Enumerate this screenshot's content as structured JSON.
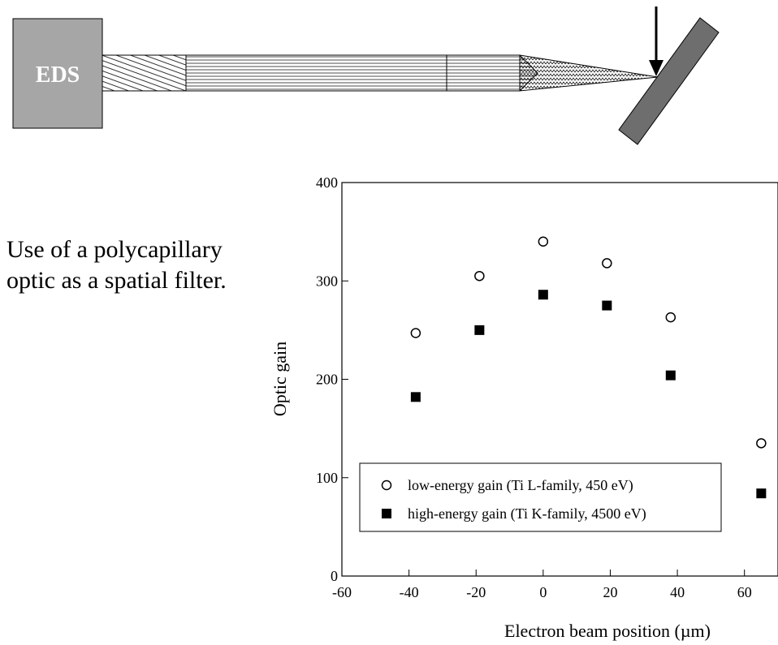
{
  "diagram": {
    "label": "EDS"
  },
  "caption": "Use of a polycapillary optic as a spatial filter.",
  "chart_data": {
    "type": "scatter",
    "xlabel": "Electron beam position (µm)",
    "ylabel": "Optic gain",
    "xlim": [
      -60,
      70
    ],
    "ylim": [
      0,
      400
    ],
    "xticks": [
      -60,
      -40,
      -20,
      0,
      20,
      40,
      60
    ],
    "yticks": [
      0,
      100,
      200,
      300,
      400
    ],
    "series": [
      {
        "name": "low-energy gain (Ti L-family, 450 eV)",
        "color": "#000000",
        "marker": "circle",
        "x": [
          -38,
          -19,
          0,
          19,
          38,
          65
        ],
        "values": [
          247,
          305,
          340,
          318,
          263,
          135
        ]
      },
      {
        "name": "high-energy gain (Ti K-family, 4500 eV)",
        "color": "#000000",
        "marker": "square",
        "x": [
          -38,
          -19,
          0,
          19,
          38,
          65
        ],
        "values": [
          182,
          250,
          286,
          275,
          204,
          84
        ]
      }
    ]
  }
}
